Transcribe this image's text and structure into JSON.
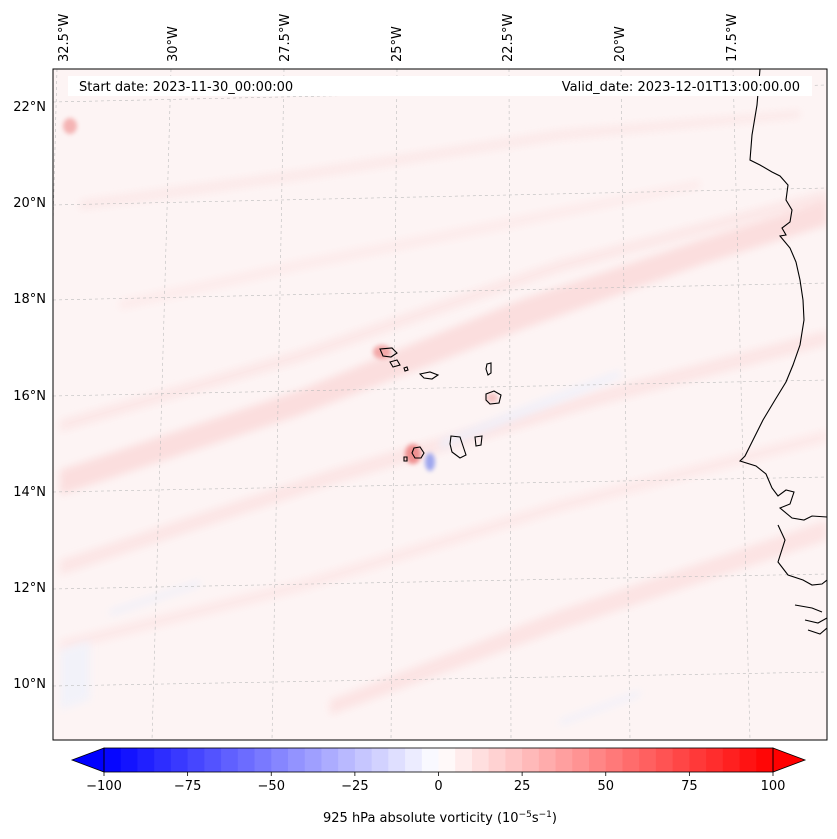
{
  "map": {
    "start_date_label": "Start date: 2023-11-30_00:00:00",
    "valid_date_label": "Valid_date: 2023-12-01T13:00:00.00",
    "lon_labels": [
      "32.5°W",
      "30°W",
      "27.5°W",
      "25°W",
      "22.5°W",
      "20°W",
      "17.5°W"
    ],
    "lat_labels": [
      "22°N",
      "20°N",
      "18°N",
      "16°N",
      "14°N",
      "12°N",
      "10°N"
    ],
    "gridlines": true,
    "coastline_color": "#000000"
  },
  "colorbar": {
    "label_text": "925 hPa absolute vorticity (10",
    "label_exp1": "−5",
    "label_mid": "s",
    "label_exp2": "−1",
    "label_close": ")",
    "tick_labels": [
      "−100",
      "−75",
      "−50",
      "−25",
      "0",
      "25",
      "50",
      "75",
      "100"
    ],
    "min": -100,
    "max": 100,
    "step": 5,
    "colormap": "bwr"
  }
}
